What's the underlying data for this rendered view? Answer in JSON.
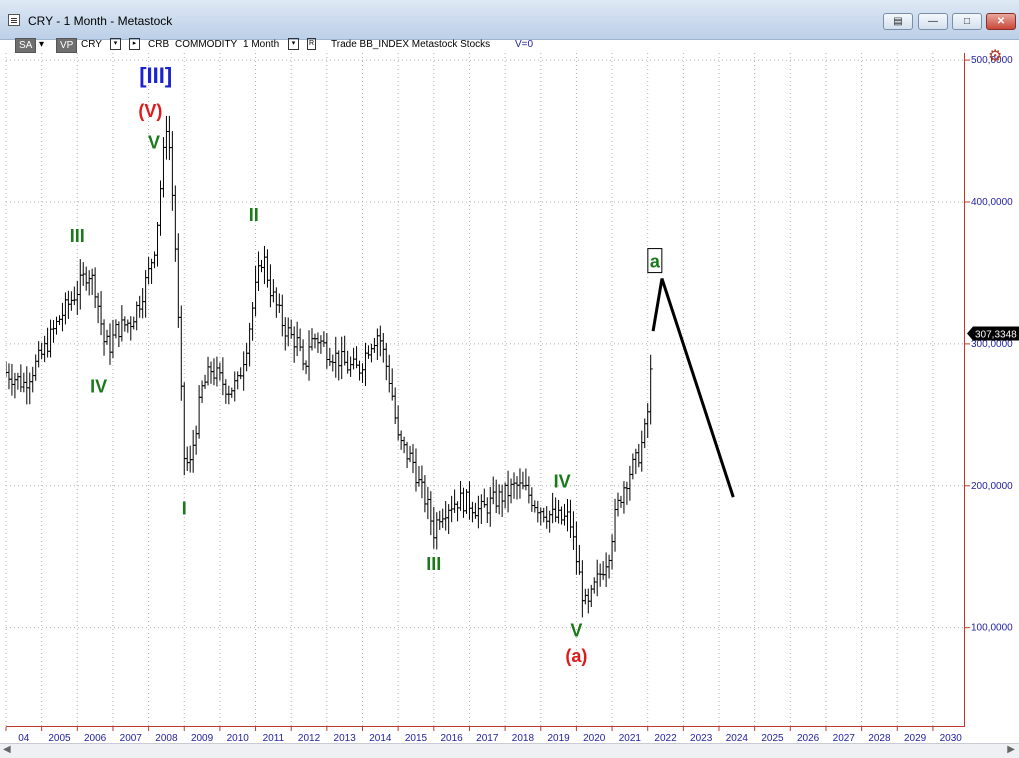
{
  "window": {
    "title": "CRY - 1 Month - Metastock",
    "buttons": [
      "restore-doc",
      "minimize",
      "maximize",
      "close"
    ]
  },
  "toolbar": {
    "sa": "SA",
    "vp": "VP",
    "symbol": "CRY",
    "name": "CRB",
    "category": "COMMODITY",
    "period": "1 Month",
    "r": "R",
    "info": "Trade  BB_INDEX  Metastock  Stocks",
    "v": "V=0"
  },
  "colors": {
    "axis": "#c0392b",
    "tick_label": "#1f1fa0",
    "wave_green": "#1a7a1a",
    "wave_red": "#e01b1b",
    "wave_blue": "#1b22d0",
    "bars": "#000000",
    "grid": "#b0b0b0"
  },
  "chart_data": {
    "type": "ohlc",
    "title": "CRY - 1 Month",
    "ylim": [
      30,
      505
    ],
    "xlim": [
      2004.0,
      2030.9
    ],
    "yticks": [
      100,
      200,
      300,
      400,
      500
    ],
    "ytick_labels": [
      "100,0000",
      "200,0000",
      "300,0000",
      "400,0000",
      "500,0000"
    ],
    "xtick_labels": [
      "04",
      "2005",
      "2006",
      "2007",
      "2008",
      "2009",
      "2010",
      "2011",
      "2012",
      "2013",
      "2014",
      "2015",
      "2016",
      "2017",
      "2018",
      "2019",
      "2020",
      "2021",
      "2022",
      "2023",
      "2024",
      "2025",
      "2026",
      "2027",
      "2028",
      "2029",
      "2030"
    ],
    "last_price": "307,3348",
    "series": [
      {
        "values": [
          [
            2004.0,
            280
          ],
          [
            2004.5,
            272
          ],
          [
            2005.0,
            292
          ],
          [
            2005.5,
            318
          ],
          [
            2006.0,
            338
          ],
          [
            2006.3,
            352
          ],
          [
            2006.5,
            340
          ],
          [
            2006.75,
            302
          ],
          [
            2006.9,
            298
          ],
          [
            2007.1,
            310
          ],
          [
            2007.5,
            316
          ],
          [
            2007.75,
            330
          ],
          [
            2008.0,
            350
          ],
          [
            2008.2,
            372
          ],
          [
            2008.35,
            415
          ],
          [
            2008.5,
            455
          ],
          [
            2008.6,
            435
          ],
          [
            2008.75,
            368
          ],
          [
            2008.9,
            272
          ],
          [
            2009.0,
            220
          ],
          [
            2009.15,
            212
          ],
          [
            2009.3,
            238
          ],
          [
            2009.5,
            268
          ],
          [
            2009.75,
            282
          ],
          [
            2010.0,
            275
          ],
          [
            2010.25,
            268
          ],
          [
            2010.5,
            272
          ],
          [
            2010.75,
            300
          ],
          [
            2011.0,
            338
          ],
          [
            2011.2,
            364
          ],
          [
            2011.4,
            340
          ],
          [
            2011.6,
            325
          ],
          [
            2011.8,
            312
          ],
          [
            2012.0,
            305
          ],
          [
            2012.2,
            300
          ],
          [
            2012.35,
            278
          ],
          [
            2012.5,
            300
          ],
          [
            2012.7,
            305
          ],
          [
            2013.0,
            296
          ],
          [
            2013.3,
            290
          ],
          [
            2013.6,
            284
          ],
          [
            2013.9,
            282
          ],
          [
            2014.2,
            300
          ],
          [
            2014.45,
            308
          ],
          [
            2014.6,
            292
          ],
          [
            2014.8,
            270
          ],
          [
            2015.0,
            232
          ],
          [
            2015.25,
            222
          ],
          [
            2015.4,
            218
          ],
          [
            2015.6,
            200
          ],
          [
            2015.8,
            188
          ],
          [
            2016.0,
            168
          ],
          [
            2016.15,
            180
          ],
          [
            2016.4,
            186
          ],
          [
            2016.7,
            190
          ],
          [
            2017.0,
            188
          ],
          [
            2017.3,
            182
          ],
          [
            2017.6,
            188
          ],
          [
            2018.0,
            194
          ],
          [
            2018.3,
            200
          ],
          [
            2018.6,
            196
          ],
          [
            2018.9,
            186
          ],
          [
            2019.2,
            180
          ],
          [
            2019.6,
            176
          ],
          [
            2019.8,
            178
          ],
          [
            2020.0,
            148
          ],
          [
            2020.2,
            120
          ],
          [
            2020.3,
            112
          ],
          [
            2020.5,
            128
          ],
          [
            2020.7,
            140
          ],
          [
            2020.9,
            152
          ],
          [
            2021.1,
            180
          ],
          [
            2021.3,
            198
          ],
          [
            2021.5,
            210
          ],
          [
            2021.7,
            218
          ],
          [
            2021.9,
            235
          ],
          [
            2022.0,
            252
          ],
          [
            2022.15,
            300
          ]
        ]
      }
    ],
    "projection": [
      [
        2022.15,
        309
      ],
      [
        2022.4,
        346
      ],
      [
        2024.4,
        192
      ]
    ],
    "wave_labels": [
      {
        "text": "[III]",
        "x": 2008.2,
        "y": 488,
        "color": "blue",
        "style": "bold"
      },
      {
        "text": "(V)",
        "x": 2008.05,
        "y": 464,
        "color": "red",
        "style": "bold"
      },
      {
        "text": "V",
        "x": 2008.15,
        "y": 442,
        "color": "green",
        "style": "bold"
      },
      {
        "text": "III",
        "x": 2006.0,
        "y": 376,
        "color": "green",
        "style": "bold"
      },
      {
        "text": "IV",
        "x": 2006.6,
        "y": 270,
        "color": "green",
        "style": "bold"
      },
      {
        "text": "I",
        "x": 2009.0,
        "y": 184,
        "color": "green",
        "style": "bold"
      },
      {
        "text": "II",
        "x": 2010.95,
        "y": 391,
        "color": "green",
        "style": "bold"
      },
      {
        "text": "III",
        "x": 2016.0,
        "y": 145,
        "color": "green",
        "style": "bold"
      },
      {
        "text": "IV",
        "x": 2019.6,
        "y": 203,
        "color": "green",
        "style": "bold"
      },
      {
        "text": "V",
        "x": 2020.0,
        "y": 98,
        "color": "green",
        "style": "bold"
      },
      {
        "text": "(a)",
        "x": 2020.0,
        "y": 80,
        "color": "red",
        "style": "bold"
      },
      {
        "text": "a",
        "x": 2022.2,
        "y": 358,
        "color": "green",
        "style": "boxed"
      }
    ]
  }
}
